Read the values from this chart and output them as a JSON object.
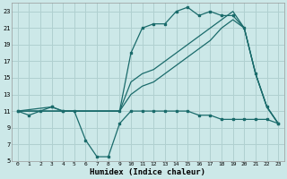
{
  "title": "",
  "xlabel": "Humidex (Indice chaleur)",
  "bg_color": "#cce8e8",
  "grid_color": "#b0d0d0",
  "line_color": "#1a6b6b",
  "xlim": [
    -0.5,
    23.5
  ],
  "ylim": [
    5,
    24
  ],
  "yticks": [
    5,
    7,
    9,
    11,
    13,
    15,
    17,
    19,
    21,
    23
  ],
  "xticks": [
    0,
    1,
    2,
    3,
    4,
    5,
    6,
    7,
    8,
    9,
    10,
    11,
    12,
    13,
    14,
    15,
    16,
    17,
    18,
    19,
    20,
    21,
    22,
    23
  ],
  "series1_x": [
    0,
    1,
    2,
    3,
    4,
    5,
    6,
    7,
    8,
    9,
    10,
    11,
    12,
    13,
    14,
    15,
    16,
    17,
    18,
    19,
    20,
    21,
    22,
    23
  ],
  "series1_y": [
    11,
    10.5,
    11,
    11.5,
    11,
    11,
    7.5,
    5.5,
    5.5,
    9.5,
    11,
    11,
    11,
    11,
    11,
    11,
    10.5,
    10.5,
    10,
    10,
    10,
    10,
    10,
    9.5
  ],
  "series2_x": [
    0,
    3,
    4,
    9,
    10,
    11,
    12,
    13,
    14,
    15,
    16,
    17,
    18,
    19,
    20,
    21,
    22,
    23
  ],
  "series2_y": [
    11,
    11.5,
    11,
    11,
    18,
    21,
    21.5,
    21.5,
    23,
    23.5,
    22.5,
    23,
    22.5,
    22.5,
    21,
    15.5,
    11.5,
    9.5
  ],
  "series3_x": [
    0,
    9,
    10,
    11,
    12,
    13,
    14,
    15,
    16,
    17,
    18,
    19,
    20,
    21,
    22,
    23
  ],
  "series3_y": [
    11,
    11,
    14.5,
    15.5,
    16,
    17,
    18,
    19,
    20,
    21,
    22,
    23,
    21,
    15.5,
    11.5,
    9.5
  ],
  "series4_x": [
    0,
    9,
    10,
    11,
    12,
    13,
    14,
    15,
    16,
    17,
    18,
    19,
    20,
    21,
    22,
    23
  ],
  "series4_y": [
    11,
    11,
    13,
    14,
    14.5,
    15.5,
    16.5,
    17.5,
    18.5,
    19.5,
    21,
    22,
    21,
    15.5,
    11.5,
    9.5
  ]
}
